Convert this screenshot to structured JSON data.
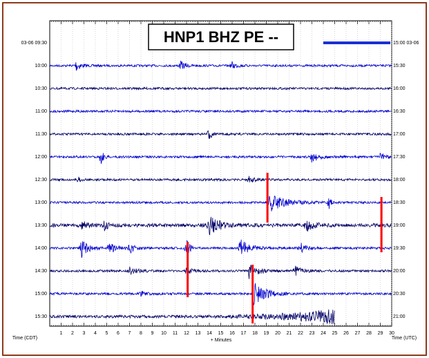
{
  "chart_data": {
    "type": "helicorder",
    "title": "HNP1 BHZ PE --",
    "xlabel": "+ Minutes",
    "left_axis_title": "Time (CDT)",
    "right_axis_title": "Time (UTC)",
    "categories": [
      "03-06 09:30",
      "10:00",
      "10:30",
      "11:00",
      "11:30",
      "12:00",
      "12:30",
      "13:00",
      "13:30",
      "14:00",
      "14:30",
      "15:00",
      "15:30"
    ],
    "right_categories": [
      "15:00 03-06",
      "15:30",
      "16:00",
      "16:30",
      "17:00",
      "17:30",
      "18:00",
      "18:30",
      "19:00",
      "19:30",
      "20:00",
      "20:30",
      "21:00"
    ],
    "xlim": [
      0,
      30
    ],
    "xticks": [
      1,
      2,
      3,
      4,
      5,
      6,
      7,
      8,
      9,
      10,
      11,
      12,
      13,
      14,
      15,
      16,
      17,
      18,
      19,
      20,
      21,
      22,
      23,
      24,
      25,
      26,
      27,
      28,
      29,
      30
    ],
    "colors": [
      "#000066",
      "#0000cc"
    ],
    "grid": true
  }
}
